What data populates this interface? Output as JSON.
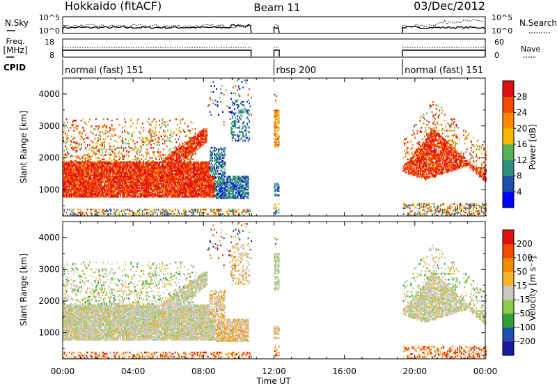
{
  "header": {
    "station": "Hokkaido (fitACF)",
    "beam": "Beam 11",
    "date": "03/Dec/2012"
  },
  "panels": {
    "sky_label": "N.Sky",
    "sky_ticks": [
      "10^5",
      "10^0"
    ],
    "search_label": "N.Search",
    "search_ticks": [
      "10^5",
      "10^0"
    ],
    "freq_label": "Freq.",
    "freq_unit": "[MHz]",
    "freq_ticks": [
      "18",
      "8"
    ],
    "nave_label": "Nave",
    "nave_ticks": [
      "60",
      "0"
    ],
    "cpid_label": "CPID",
    "cpid_segments": [
      {
        "label": "normal (fast) 151",
        "start_hour": 0,
        "end_hour": 10.7
      },
      {
        "label": "rbsp 200",
        "start_hour": 12.0,
        "end_hour": 12.3
      },
      {
        "label": "normal (fast) 151",
        "start_hour": 19.3,
        "end_hour": 24
      }
    ]
  },
  "colors": {
    "power": [
      "#0000ff",
      "#1f4faa",
      "#2f8f7f",
      "#58b05a",
      "#f4ba00",
      "#ff8800",
      "#f04a00",
      "#e01010"
    ],
    "velocity": [
      "#e01010",
      "#f04a00",
      "#f28a00",
      "#f4b52c",
      "#c8c8c0",
      "#8ccc4a",
      "#2fa038",
      "#1f4faa",
      "#1818a0"
    ]
  },
  "chart_data": [
    {
      "type": "heatmap",
      "title": "Power",
      "ylabel": "Slant Range [km]",
      "xlabel": "Time UT",
      "xlim": [
        0,
        24
      ],
      "ylim": [
        180,
        4500
      ],
      "x_ticks": [
        "00:00",
        "04:00",
        "08:00",
        "12:00",
        "16:00",
        "20:00",
        "00:00"
      ],
      "y_ticks": [
        "1000",
        "2000",
        "3000",
        "4000"
      ],
      "colorbar_label": "Power [dB]",
      "colorbar_ticks": [
        "4",
        "8",
        "12",
        "16",
        "20",
        "24",
        "28"
      ]
    },
    {
      "type": "heatmap",
      "title": "Velocity",
      "ylabel": "Slant Range [km]",
      "xlabel": "Time UT",
      "xlim": [
        0,
        24
      ],
      "ylim": [
        180,
        4500
      ],
      "x_ticks": [
        "00:00",
        "04:00",
        "08:00",
        "12:00",
        "16:00",
        "20:00",
        "00:00"
      ],
      "y_ticks": [
        "1000",
        "2000",
        "3000",
        "4000"
      ],
      "colorbar_label": "Velocity [m s⁻¹]",
      "colorbar_ticks": [
        "200",
        "100",
        "50",
        "15",
        "-15",
        "-50",
        "-100",
        "-200"
      ]
    }
  ]
}
